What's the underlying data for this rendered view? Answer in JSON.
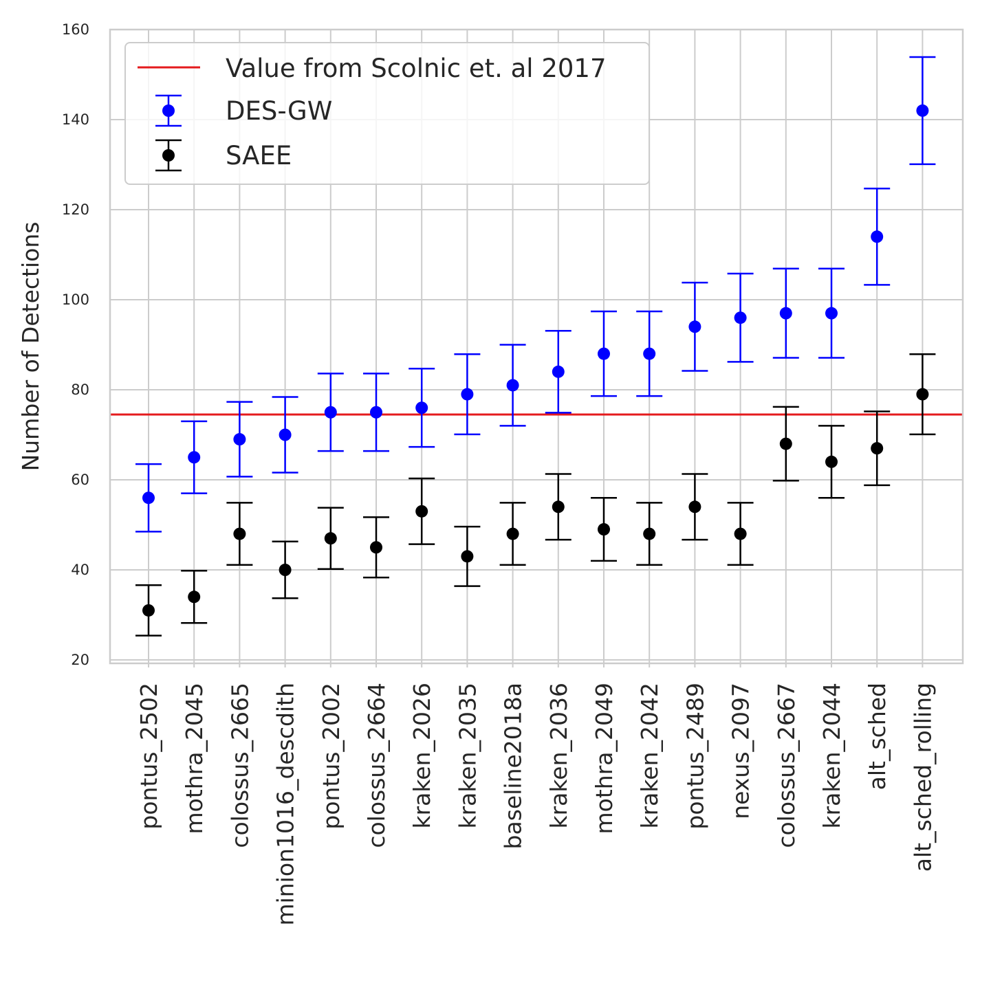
{
  "chart_data": {
    "type": "scatter",
    "title": "",
    "xlabel": "",
    "ylabel": "Number of Detections",
    "ylim": [
      20,
      160
    ],
    "yticks": [
      20,
      40,
      60,
      80,
      100,
      120,
      140,
      160
    ],
    "grid": true,
    "legend_position": "top-left",
    "categories": [
      "pontus_2502",
      "mothra_2045",
      "colossus_2665",
      "minion1016_descdith",
      "pontus_2002",
      "colossus_2664",
      "kraken_2026",
      "kraken_2035",
      "baseline2018a",
      "kraken_2036",
      "mothra_2049",
      "kraken_2042",
      "pontus_2489",
      "nexus_2097",
      "colossus_2667",
      "kraken_2044",
      "alt_sched",
      "alt_sched_rolling"
    ],
    "reference_line": {
      "name": "Value from Scolnic et. al 2017",
      "value": 74.5,
      "color": "#e41a1c"
    },
    "series": [
      {
        "name": "DES-GW",
        "color": "#0000ff",
        "values": [
          56,
          65,
          69,
          70,
          75,
          75,
          76,
          79,
          81,
          84,
          88,
          88,
          94,
          96,
          97,
          97,
          114,
          142
        ],
        "lower": [
          48.5,
          57,
          60.7,
          61.6,
          66.4,
          66.4,
          67.3,
          70.1,
          72,
          74.9,
          78.6,
          78.6,
          84.2,
          86.2,
          87.1,
          87.1,
          103.3,
          130.1
        ],
        "upper": [
          63.5,
          73,
          77.3,
          78.4,
          83.6,
          83.6,
          84.7,
          87.9,
          90,
          93.1,
          97.4,
          97.4,
          103.8,
          105.8,
          106.9,
          106.9,
          124.7,
          153.9
        ]
      },
      {
        "name": "SAEE",
        "color": "#000000",
        "values": [
          31,
          34,
          48,
          40,
          47,
          45,
          53,
          43,
          48,
          54,
          49,
          48,
          54,
          48,
          68,
          64,
          67,
          79
        ],
        "lower": [
          25.4,
          28.2,
          41.1,
          33.7,
          40.2,
          38.3,
          45.7,
          36.4,
          41.1,
          46.7,
          42,
          41.1,
          46.7,
          41.1,
          59.8,
          56,
          58.8,
          70.1
        ],
        "upper": [
          36.6,
          39.8,
          54.9,
          46.3,
          53.8,
          51.7,
          60.3,
          49.6,
          54.9,
          61.3,
          56,
          54.9,
          61.3,
          54.9,
          76.2,
          72,
          75.2,
          87.9
        ]
      }
    ]
  }
}
